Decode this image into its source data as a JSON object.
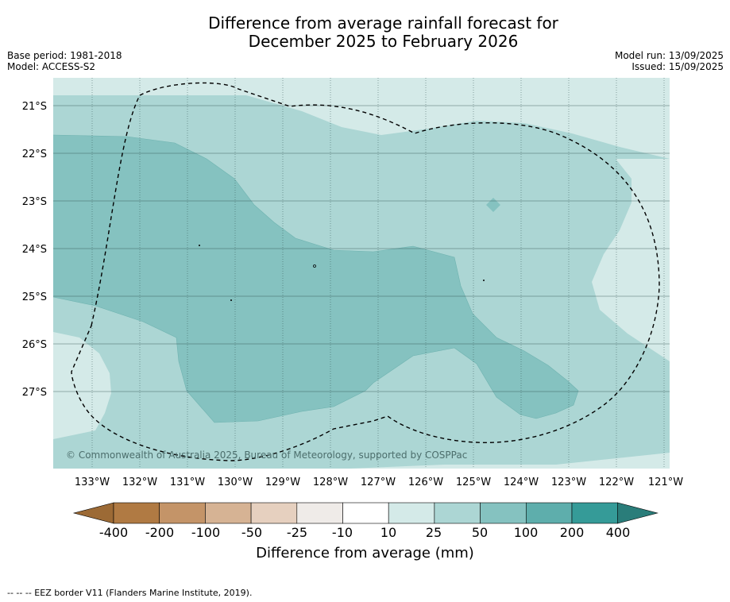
{
  "title_line1": "Difference from average rainfall forecast for",
  "title_line2": "December 2025 to February 2026",
  "base_period": "Base period: 1981-2018",
  "model": "Model: ACCESS-S2",
  "model_run": "Model run: 13/09/2025",
  "issued": "Issued: 15/09/2025",
  "copyright": "© Commonwealth of Australia 2025, Bureau of Meteorology, supported by COSPPac",
  "lat_labels": [
    "21°S",
    "22°S",
    "23°S",
    "24°S",
    "25°S",
    "26°S",
    "27°S"
  ],
  "lon_labels": [
    "133°W",
    "132°W",
    "131°W",
    "130°W",
    "129°W",
    "128°W",
    "127°W",
    "126°W",
    "125°W",
    "124°W",
    "123°W",
    "122°W",
    "121°W"
  ],
  "colorbar": {
    "ticks": [
      "-400",
      "-200",
      "-100",
      "-50",
      "-25",
      "-10",
      "10",
      "25",
      "50",
      "100",
      "200",
      "400"
    ],
    "colors": [
      "#9c6a35",
      "#b07a43",
      "#c49468",
      "#d6b394",
      "#e6d0bf",
      "#efebe8",
      "#ffffff",
      "#d4eae8",
      "#acd6d4",
      "#85c2c0",
      "#5eaeac",
      "#359b98",
      "#2a7d7a"
    ],
    "label": "Difference from average (mm)"
  },
  "legend_note": "--  --  -- EEZ border V11 (Flanders Marine Institute, 2019)."
}
